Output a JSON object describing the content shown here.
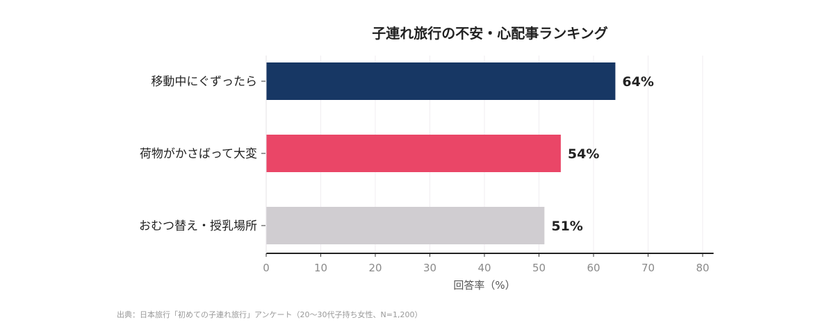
{
  "chart_data": {
    "type": "bar",
    "orientation": "horizontal",
    "title": "子連れ旅行の不安・心配事ランキング",
    "categories": [
      "移動中にぐずったら",
      "荷物がかさばって大変",
      "おむつ替え・授乳場所"
    ],
    "values": [
      64,
      54,
      51
    ],
    "value_labels": [
      "64%",
      "54%",
      "51%"
    ],
    "colors": [
      "#173764",
      "#ea4667",
      "#d0cdd1"
    ],
    "xlabel": "回答率（%）",
    "xlim": [
      0,
      82
    ],
    "xticks": [
      0,
      10,
      20,
      30,
      40,
      50,
      60,
      70,
      80
    ],
    "grid": "vertical"
  },
  "source": "出典：日本旅行「初めての子連れ旅行」アンケート（20〜30代子持ち女性、N=1,200）"
}
